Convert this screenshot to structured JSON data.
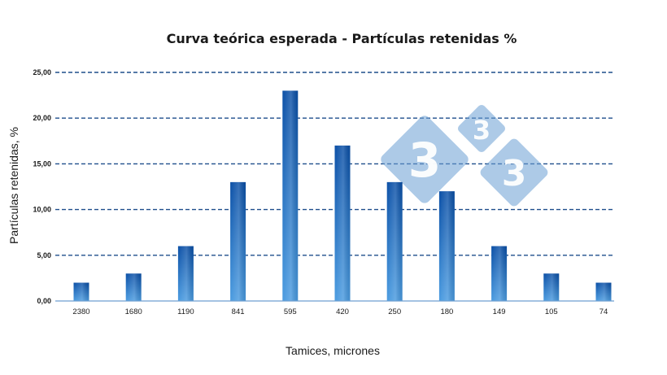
{
  "chart_data": {
    "type": "bar",
    "title": "Curva teórica esperada - Partículas retenidas %",
    "xlabel": "Tamices, micrones",
    "ylabel": "Partículas retenidas, %",
    "categories": [
      "2380",
      "1680",
      "1190",
      "841",
      "595",
      "420",
      "250",
      "180",
      "149",
      "105",
      "74"
    ],
    "values": [
      2,
      3,
      6,
      13,
      23,
      17,
      13,
      12,
      6,
      3,
      2
    ],
    "ylim": [
      0,
      25
    ],
    "yticks": [
      "0,00",
      "5,00",
      "10,00",
      "15,00",
      "20,00",
      "25,00"
    ],
    "grid": true,
    "legend": "none"
  },
  "watermark": {
    "logo_text": [
      "3",
      "3",
      "3"
    ],
    "color": "#6a9fd3"
  },
  "colors": {
    "bar_top": "#0a4fa6",
    "bar_bottom": "#4a9be0",
    "grid": "#1f4e8c"
  }
}
